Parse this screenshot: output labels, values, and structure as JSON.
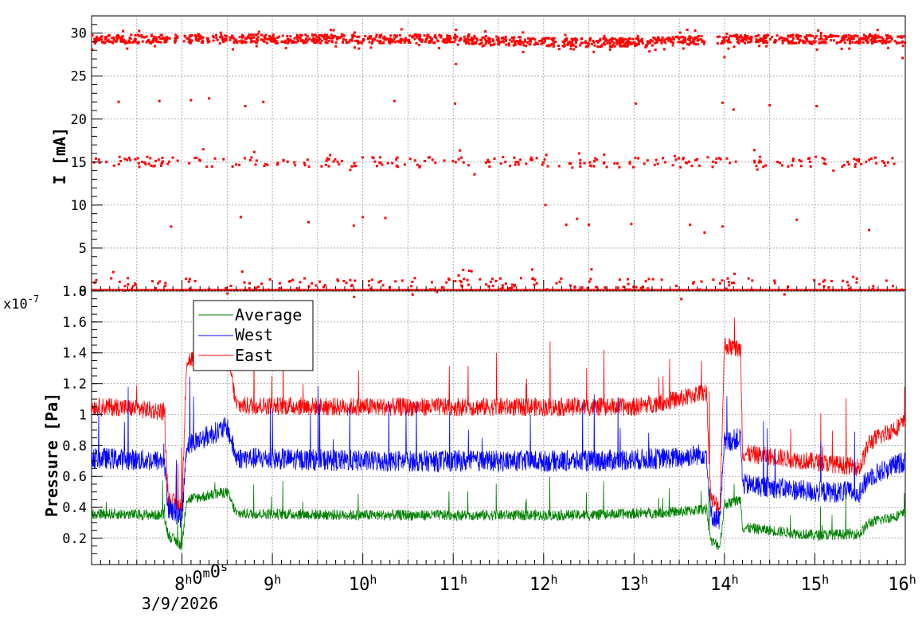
{
  "chart_data": [
    {
      "type": "scatter",
      "ylabel": "I [mA]",
      "ylim": [
        0,
        32
      ],
      "yticks": [
        "0",
        "5",
        "10",
        "15",
        "20",
        "25",
        "30"
      ],
      "grid": true,
      "series": [
        {
          "color": "#ff0000",
          "bands": [
            {
              "level": 29.3,
              "spread": 0.5,
              "start_hour": 7.0,
              "end_hour": 16.0,
              "gap": [
                13.78,
                13.92
              ]
            },
            {
              "level": 15.0,
              "spread": 0.6,
              "start_hour": 7.0,
              "end_hour": 16.0
            },
            {
              "level": 0.8,
              "spread": 0.7,
              "start_hour": 7.0,
              "end_hour": 16.0
            }
          ],
          "sparse_points": [
            {
              "x": 7.3,
              "y": 22
            },
            {
              "x": 7.75,
              "y": 22.1
            },
            {
              "x": 8.1,
              "y": 22.2
            },
            {
              "x": 8.3,
              "y": 22.4
            },
            {
              "x": 8.7,
              "y": 21.5
            },
            {
              "x": 8.9,
              "y": 22
            },
            {
              "x": 10.35,
              "y": 22.1
            },
            {
              "x": 11.02,
              "y": 21.8
            },
            {
              "x": 13.02,
              "y": 21.8
            },
            {
              "x": 13.98,
              "y": 21.9
            },
            {
              "x": 14.1,
              "y": 21.1
            },
            {
              "x": 14.5,
              "y": 21.6
            },
            {
              "x": 15.02,
              "y": 21.5
            },
            {
              "x": 7.88,
              "y": 7.5
            },
            {
              "x": 8.65,
              "y": 8.6
            },
            {
              "x": 9.4,
              "y": 8
            },
            {
              "x": 9.9,
              "y": 7.6
            },
            {
              "x": 10.0,
              "y": 8.6
            },
            {
              "x": 10.25,
              "y": 8.5
            },
            {
              "x": 12.02,
              "y": 10
            },
            {
              "x": 12.25,
              "y": 7.7
            },
            {
              "x": 12.37,
              "y": 8.4
            },
            {
              "x": 12.5,
              "y": 7.7
            },
            {
              "x": 12.97,
              "y": 7.8
            },
            {
              "x": 13.62,
              "y": 7.7
            },
            {
              "x": 13.78,
              "y": 6.8
            },
            {
              "x": 13.98,
              "y": 7.5
            },
            {
              "x": 14.8,
              "y": 8.3
            },
            {
              "x": 15.6,
              "y": 7.1
            },
            {
              "x": 11.03,
              "y": 26.4
            },
            {
              "x": 14.0,
              "y": 27.2
            },
            {
              "x": 15.97,
              "y": 27.1
            }
          ]
        }
      ]
    },
    {
      "type": "line",
      "ylabel": "Pressure [Pa]",
      "y_scale_label": "x10",
      "y_scale_exponent": "-7",
      "ylim": [
        0.03,
        1.8
      ],
      "yticks": [
        "0.2",
        "0.4",
        "0.6",
        "0.8",
        "1",
        "1.2",
        "1.4",
        "1.6",
        "1.8"
      ],
      "grid": true,
      "x_axis": {
        "range_hours": [
          7.0,
          16.0
        ],
        "ticks": [
          {
            "hour": 8,
            "base": "8",
            "sup": "h",
            "extra": "0",
            "extra_sup": "m",
            "extra2": "0",
            "extra2_sup": "s"
          },
          {
            "hour": 9,
            "base": "9",
            "sup": "h"
          },
          {
            "hour": 10,
            "base": "10",
            "sup": "h"
          },
          {
            "hour": 11,
            "base": "11",
            "sup": "h"
          },
          {
            "hour": 12,
            "base": "12",
            "sup": "h"
          },
          {
            "hour": 13,
            "base": "13",
            "sup": "h"
          },
          {
            "hour": 14,
            "base": "14",
            "sup": "h"
          },
          {
            "hour": 15,
            "base": "15",
            "sup": "h"
          },
          {
            "hour": 16,
            "base": "16",
            "sup": "h"
          }
        ],
        "date": "3/9/2026"
      },
      "legend": {
        "position": "top-left",
        "entries": [
          {
            "label": "Average",
            "color": "#008000"
          },
          {
            "label": "West",
            "color": "#0000ff"
          },
          {
            "label": "East",
            "color": "#ff0000"
          }
        ]
      },
      "series": [
        {
          "name": "East",
          "color": "#ff0000",
          "profile": [
            [
              7.0,
              1.05
            ],
            [
              7.3,
              1.05
            ],
            [
              7.8,
              1.02
            ],
            [
              7.85,
              0.45
            ],
            [
              8.0,
              0.4
            ],
            [
              8.05,
              1.35
            ],
            [
              8.5,
              1.42
            ],
            [
              8.6,
              1.06
            ],
            [
              10.0,
              1.05
            ],
            [
              12.5,
              1.05
            ],
            [
              13.0,
              1.05
            ],
            [
              13.5,
              1.1
            ],
            [
              13.8,
              1.15
            ],
            [
              13.85,
              0.45
            ],
            [
              13.95,
              0.4
            ],
            [
              14.0,
              1.45
            ],
            [
              14.18,
              1.42
            ],
            [
              14.2,
              0.75
            ],
            [
              15.5,
              0.66
            ],
            [
              15.6,
              0.82
            ],
            [
              16.0,
              0.95
            ]
          ],
          "noise": 0.06
        },
        {
          "name": "West",
          "color": "#0000ff",
          "profile": [
            [
              7.0,
              0.72
            ],
            [
              7.8,
              0.7
            ],
            [
              7.85,
              0.4
            ],
            [
              8.0,
              0.33
            ],
            [
              8.05,
              0.8
            ],
            [
              8.5,
              0.92
            ],
            [
              8.6,
              0.72
            ],
            [
              10.0,
              0.7
            ],
            [
              12.5,
              0.7
            ],
            [
              13.5,
              0.72
            ],
            [
              13.8,
              0.75
            ],
            [
              13.85,
              0.35
            ],
            [
              13.95,
              0.32
            ],
            [
              14.0,
              0.82
            ],
            [
              14.18,
              0.85
            ],
            [
              14.2,
              0.55
            ],
            [
              15.0,
              0.5
            ],
            [
              15.5,
              0.5
            ],
            [
              15.6,
              0.6
            ],
            [
              16.0,
              0.7
            ]
          ],
          "noise": 0.07
        },
        {
          "name": "Average",
          "color": "#008000",
          "profile": [
            [
              7.0,
              0.36
            ],
            [
              7.8,
              0.35
            ],
            [
              7.85,
              0.22
            ],
            [
              8.0,
              0.15
            ],
            [
              8.05,
              0.45
            ],
            [
              8.5,
              0.5
            ],
            [
              8.6,
              0.36
            ],
            [
              10.0,
              0.35
            ],
            [
              12.5,
              0.35
            ],
            [
              13.5,
              0.37
            ],
            [
              13.8,
              0.39
            ],
            [
              13.85,
              0.18
            ],
            [
              13.95,
              0.15
            ],
            [
              14.0,
              0.42
            ],
            [
              14.18,
              0.45
            ],
            [
              14.2,
              0.27
            ],
            [
              15.0,
              0.22
            ],
            [
              15.5,
              0.23
            ],
            [
              15.6,
              0.3
            ],
            [
              16.0,
              0.36
            ]
          ],
          "noise": 0.035
        }
      ]
    }
  ]
}
